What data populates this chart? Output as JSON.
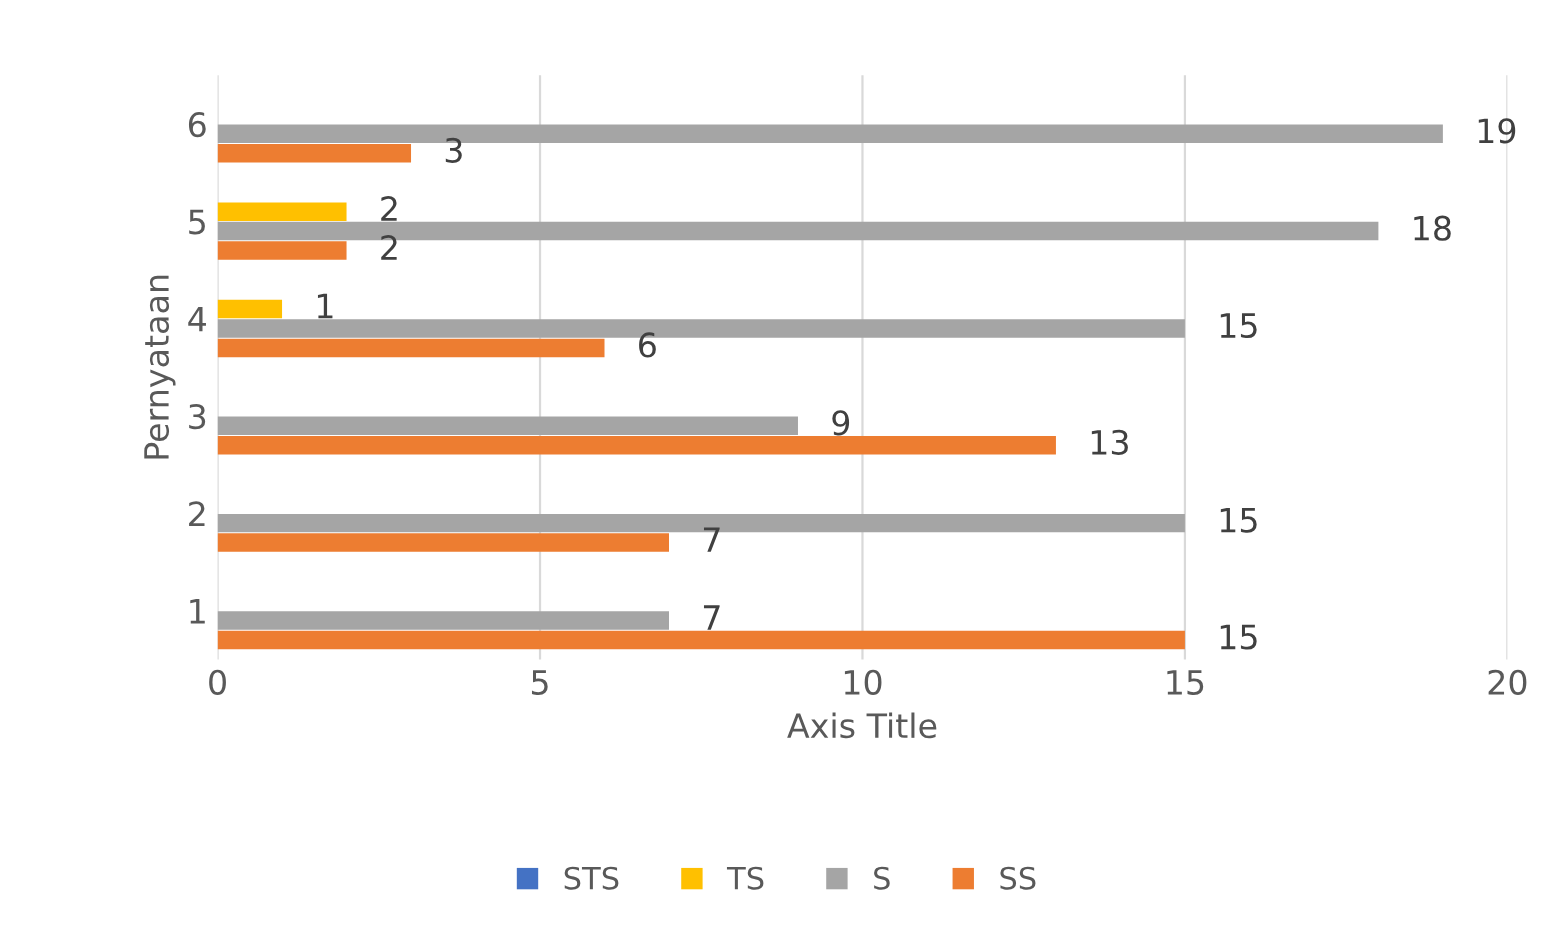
{
  "chart_data": {
    "type": "bar",
    "orientation": "horizontal",
    "xlabel": "Axis Title",
    "ylabel": "Pernyataan",
    "categories": [
      "6",
      "5",
      "4",
      "3",
      "2",
      "1"
    ],
    "series": [
      {
        "name": "STS",
        "color": "#4472c4",
        "values": [
          null,
          null,
          null,
          null,
          null,
          null
        ]
      },
      {
        "name": "TS",
        "color": "#ffc000",
        "values": [
          null,
          2,
          1,
          null,
          null,
          null
        ]
      },
      {
        "name": "S",
        "color": "#a5a5a5",
        "values": [
          19,
          18,
          15,
          9,
          15,
          7
        ]
      },
      {
        "name": "SS",
        "color": "#ed7d31",
        "values": [
          3,
          2,
          6,
          13,
          7,
          15
        ]
      }
    ],
    "data_labels": true,
    "xlim": [
      0,
      20
    ],
    "xticks": [
      0,
      5,
      10,
      15,
      20
    ],
    "grid": "x",
    "legend": "bottom"
  }
}
